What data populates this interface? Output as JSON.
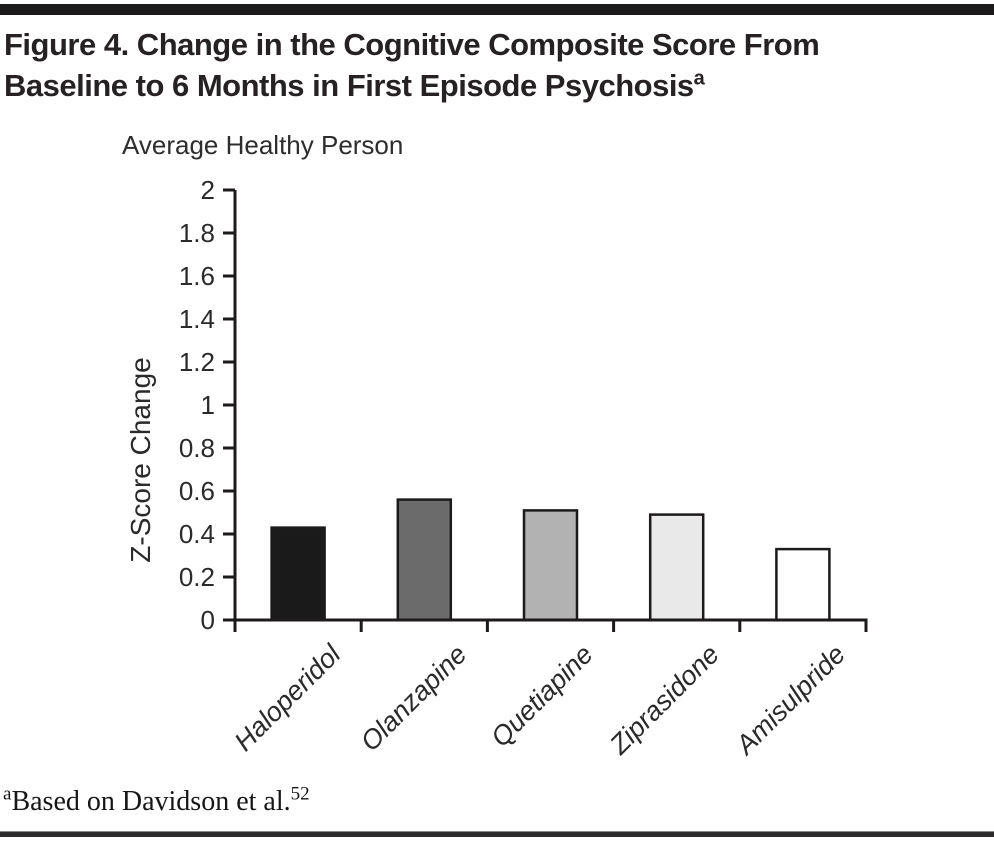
{
  "page": {
    "title_line1": "Figure 4. Change in the Cognitive Composite Score From",
    "title_line2": "Baseline to 6 Months in First Episode Psychosis",
    "title_footnote_marker": "a",
    "footnote_marker": "a",
    "footnote_text": "Based on Davidson et al.",
    "footnote_citation": "52"
  },
  "chart_data": {
    "type": "bar",
    "title": "Figure 4. Change in the Cognitive Composite Score From Baseline to 6 Months in First Episode Psychosis",
    "annotation": "Average Healthy Person",
    "xlabel": "",
    "ylabel": "Z-Score Change",
    "categories": [
      "Haloperidol",
      "Olanzapine",
      "Quetiapine",
      "Ziprasidone",
      "Amisulpride"
    ],
    "values": [
      0.43,
      0.56,
      0.51,
      0.49,
      0.33
    ],
    "bar_fills": [
      "#1a1a1a",
      "#6b6b6b",
      "#b2b2b2",
      "#e9e9e9",
      "#ffffff"
    ],
    "bar_stroke": "#1d1a1b",
    "axis_color": "#1d1a1b",
    "text_color": "#2a2a2a",
    "ylim": [
      0,
      2
    ],
    "ytick_step": 0.2,
    "ytick_labels": [
      "0",
      "0.2",
      "0.4",
      "0.6",
      "0.8",
      "1",
      "1.2",
      "1.4",
      "1.6",
      "1.8",
      "2"
    ],
    "grid": false,
    "legend": "none",
    "category_label_style": "italic, rotated 45 degrees"
  }
}
